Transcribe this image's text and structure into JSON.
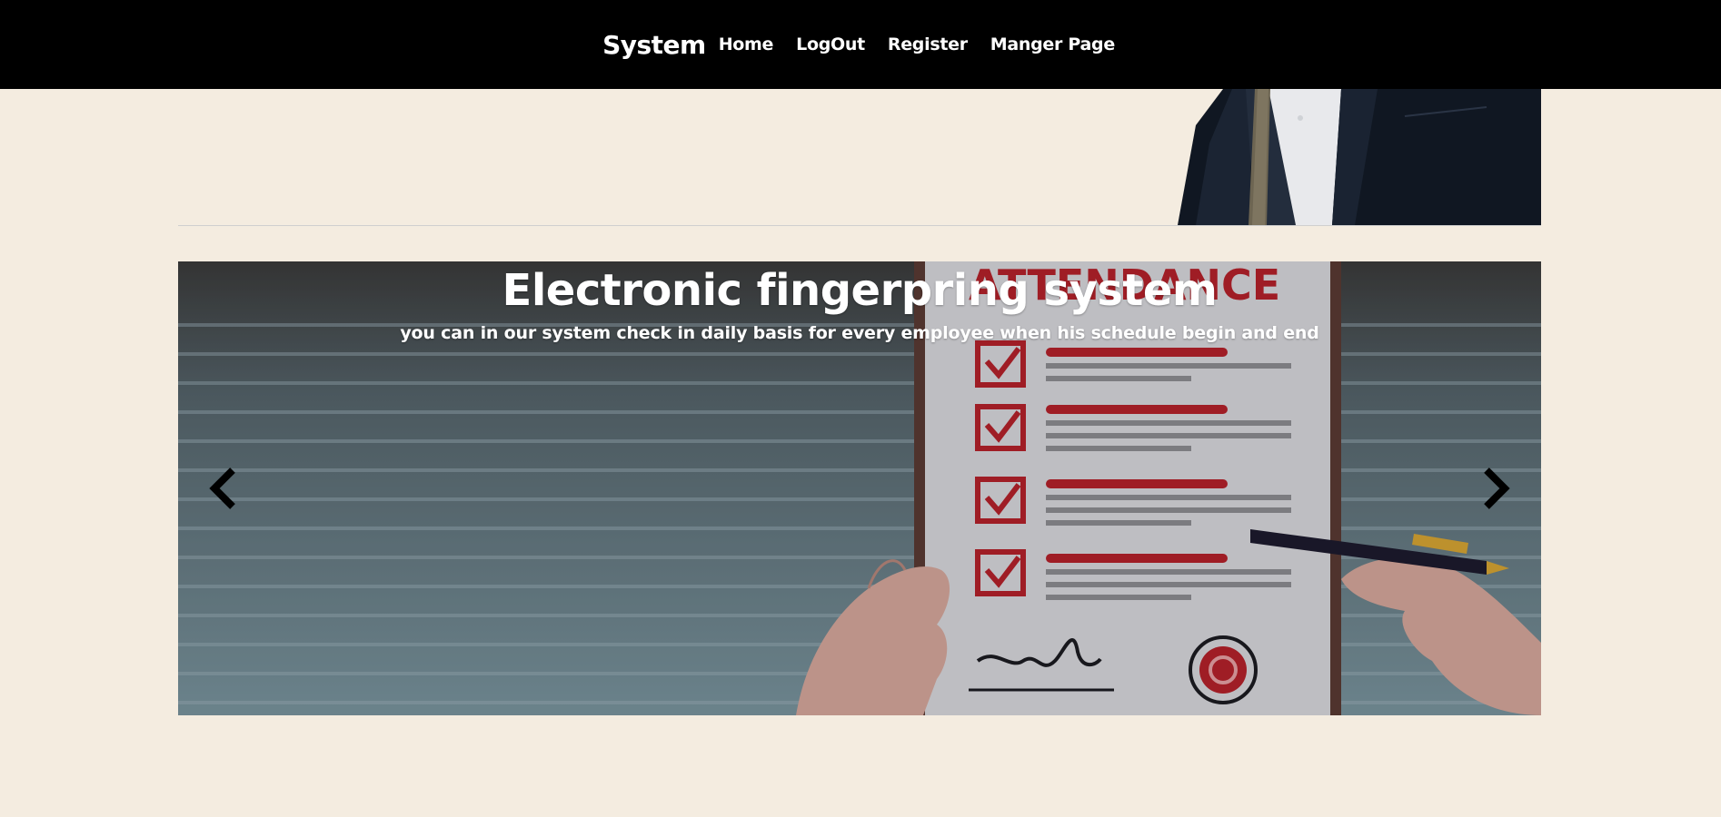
{
  "navbar": {
    "brand": "System",
    "links": [
      "Home",
      "LogOut",
      "Register",
      "Manger Page"
    ]
  },
  "carousel": {
    "title": "Electronic fingerpring system",
    "subtitle": "you can in our system check in daily basis for every employee when his schedule begin and end",
    "image_text": "ATTENDANCE",
    "prev_icon": "chevron-left-icon",
    "next_icon": "chevron-right-icon"
  },
  "colors": {
    "navbar_bg": "#000000",
    "page_bg": "#f4ece0",
    "nav_text": "#ffffff"
  }
}
